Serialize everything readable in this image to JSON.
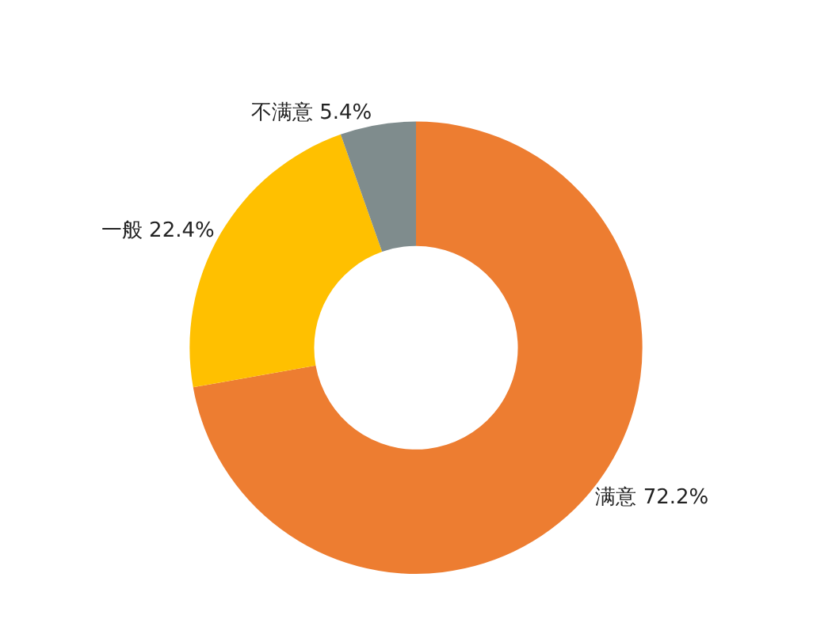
{
  "chart_data": {
    "type": "donut",
    "categories": [
      "满意",
      "一般",
      "不满意"
    ],
    "values": [
      72.2,
      22.4,
      5.4
    ],
    "value_labels": [
      "72.2%",
      "22.4%",
      "5.4%"
    ],
    "colors": [
      "#ed7d31",
      "#ffc000",
      "#7f8c8d"
    ],
    "legend": false
  }
}
